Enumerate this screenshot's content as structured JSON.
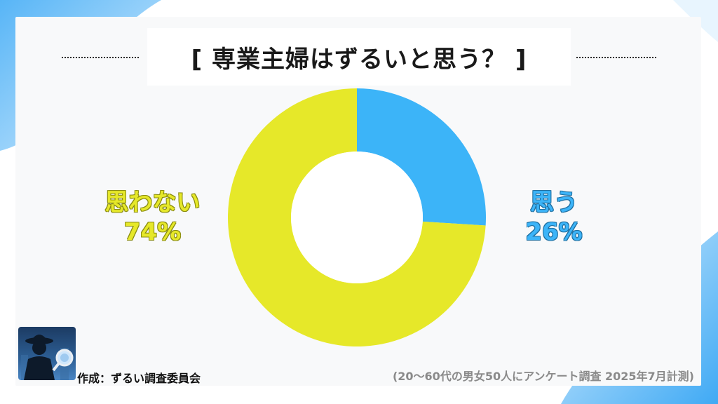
{
  "title": "[ 専業主婦はずるいと思う？ ]",
  "colors": {
    "yes": "#3cb4f8",
    "no": "#e6e829",
    "background_accent": "#4db6f7",
    "card": "#f8f9fa"
  },
  "chart_data": {
    "type": "pie",
    "subtype": "donut",
    "title": "[ 専業主婦はずるいと思う？ ]",
    "slices": [
      {
        "label": "思う",
        "value": 26,
        "value_label": "26%",
        "color": "#3cb4f8"
      },
      {
        "label": "思わない",
        "value": 74,
        "value_label": "74%",
        "color": "#e6e829"
      }
    ],
    "legend": "none"
  },
  "footer": {
    "credit": "作成：ずるい調査委員会",
    "note": "(20〜60代の男女50人にアンケート調査 2025年7月計測)",
    "logo_icon": "detective-magnifier-icon"
  }
}
